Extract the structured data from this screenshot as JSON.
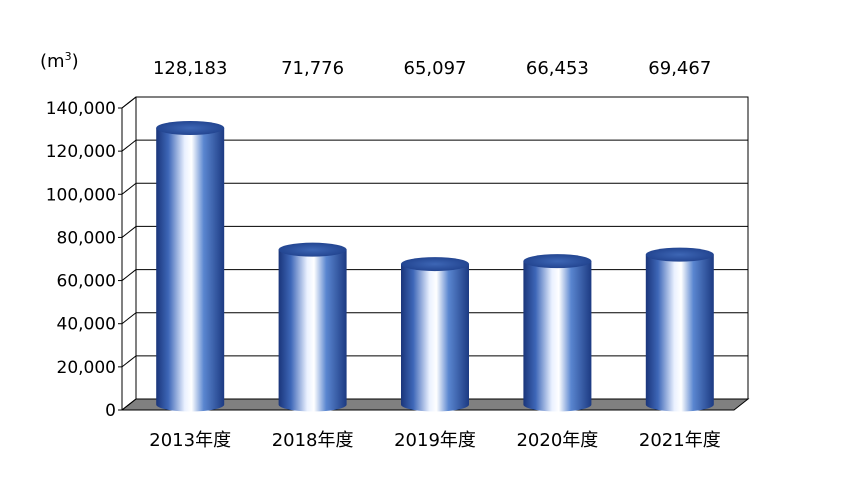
{
  "chart_data": {
    "type": "bar",
    "style": "3d-cylinder",
    "unit_label": "(m",
    "unit_label_suffix": ")",
    "unit_superscript": "3",
    "categories": [
      "2013年度",
      "2018年度",
      "2019年度",
      "2020年度",
      "2021年度"
    ],
    "values": [
      128183,
      71776,
      65097,
      66453,
      69467
    ],
    "value_labels": [
      "128,183",
      "71,776",
      "65,097",
      "66,453",
      "69,467"
    ],
    "y_ticks": [
      "0",
      "20,000",
      "40,000",
      "60,000",
      "80,000",
      "100,000",
      "120,000",
      "140,000"
    ],
    "ylim": [
      0,
      140000
    ],
    "grid": true,
    "colors": {
      "bar_dark": "#1e3f8a",
      "bar_mid": "#4a78c8",
      "bar_light": "#f2f6ff",
      "floor": "#808080",
      "grid": "#000000"
    }
  }
}
